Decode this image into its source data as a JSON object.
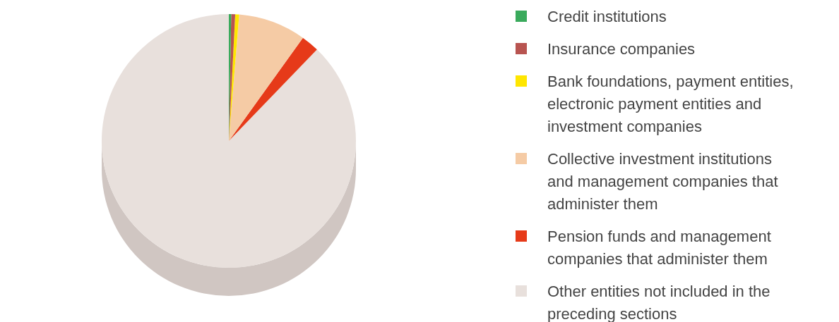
{
  "chart_data": {
    "type": "pie",
    "legend": "right",
    "categories": [
      "Credit institutions",
      "Insurance companies",
      "Bank foundations, payment entities, electronic payment entities and investment companies",
      "Collective investment institutions and management companies that administer them",
      "Pension funds and management companies that administer them",
      "Other entities not included in the preceding sections"
    ],
    "values": [
      0.3,
      0.5,
      0.5,
      8.6,
      2.3,
      87.8
    ],
    "colors": [
      "#3aaa5c",
      "#b85450",
      "#ffe600",
      "#f5cba5",
      "#e63a19",
      "#e8e0dc"
    ]
  }
}
